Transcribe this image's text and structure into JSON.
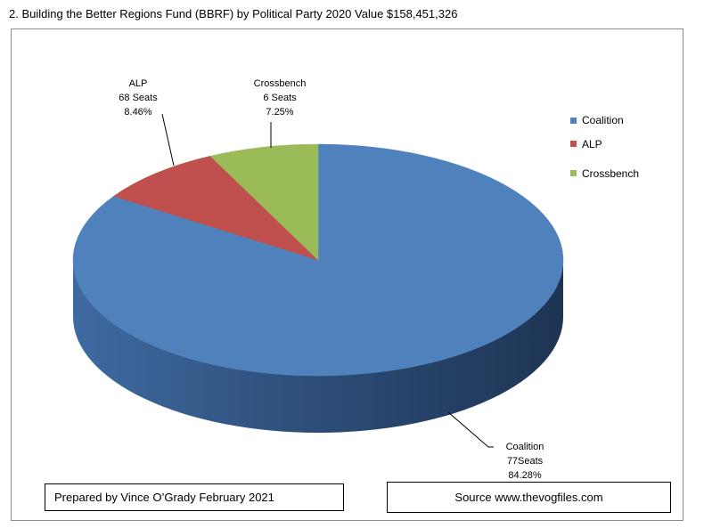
{
  "title": "2. Building the Better Regions Fund (BBRF) by Political Party 2020 Value $158,451,326",
  "chart_data": {
    "type": "pie",
    "style": "3d",
    "title": "2. Building the Better Regions Fund (BBRF) by Political Party 2020 Value $158,451,326",
    "categories": [
      "Coalition",
      "ALP",
      "Crossbench"
    ],
    "values": [
      84.28,
      8.46,
      7.25
    ],
    "seats": [
      77,
      68,
      6
    ],
    "colors": [
      "#4f81bd",
      "#c0504d",
      "#9bbb59"
    ],
    "data_labels": [
      [
        "Coalition",
        "77Seats",
        "84.28%"
      ],
      [
        "ALP",
        "68 Seats",
        "8.46%"
      ],
      [
        "Crossbench",
        "6 Seats",
        "7.25%"
      ]
    ],
    "legend": {
      "position": "right",
      "items": [
        "Coalition",
        "ALP",
        "Crossbench"
      ]
    }
  },
  "footer": {
    "prepared": "Prepared by Vince O’Grady February 2021",
    "source": "Source www.thevogfiles.com"
  }
}
